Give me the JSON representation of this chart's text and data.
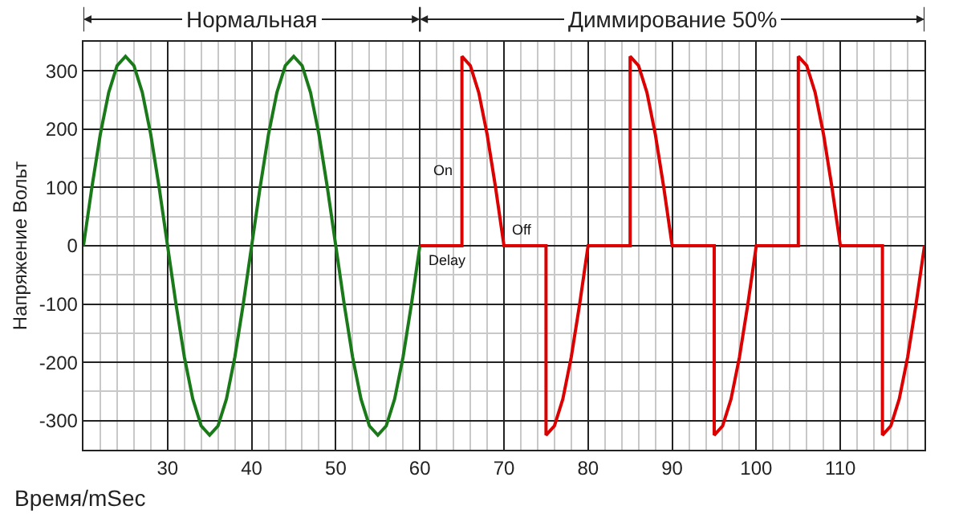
{
  "chart_data": {
    "type": "line",
    "xlabel": "Время/mSec",
    "ylabel": "Напряжение Вольт",
    "xlim": [
      20,
      120
    ],
    "xticks": [
      30,
      40,
      50,
      60,
      70,
      80,
      90,
      100,
      110
    ],
    "ylim": [
      -350,
      350
    ],
    "yticks": [
      -300,
      -200,
      -100,
      0,
      100,
      200,
      300
    ],
    "grid": true,
    "marker": "none",
    "line_style": "solid",
    "series": [
      {
        "color": "#1a7a1a",
        "x": [
          20,
          21,
          22,
          23,
          24,
          25,
          26,
          27,
          28,
          29,
          30,
          31,
          32,
          33,
          34,
          35,
          36,
          37,
          38,
          39,
          40,
          41,
          42,
          43,
          44,
          45,
          46,
          47,
          48,
          49,
          50,
          51,
          52,
          53,
          54,
          55,
          56,
          57,
          58,
          59,
          60
        ],
        "values": [
          0,
          100,
          191,
          263,
          309,
          325,
          309,
          263,
          191,
          100,
          0,
          -100,
          -191,
          -263,
          -309,
          -325,
          -309,
          -263,
          -191,
          -100,
          0,
          100,
          191,
          263,
          309,
          325,
          309,
          263,
          191,
          100,
          0,
          -100,
          -191,
          -263,
          -309,
          -325,
          -309,
          -263,
          -191,
          -100,
          0
        ]
      },
      {
        "color": "#dd0000",
        "x": [
          60,
          65,
          65,
          66,
          67,
          68,
          69,
          70,
          75,
          75,
          76,
          77,
          78,
          79,
          80,
          85,
          85,
          86,
          87,
          88,
          89,
          90,
          95,
          95,
          96,
          97,
          98,
          99,
          100,
          105,
          105,
          106,
          107,
          108,
          109,
          110,
          115,
          115,
          116,
          117,
          118,
          119,
          120
        ],
        "values": [
          0,
          0,
          325,
          309,
          263,
          191,
          100,
          0,
          0,
          -325,
          -309,
          -263,
          -191,
          -100,
          0,
          0,
          325,
          309,
          263,
          191,
          100,
          0,
          0,
          -325,
          -309,
          -263,
          -191,
          -100,
          0,
          0,
          325,
          309,
          263,
          191,
          100,
          0,
          0,
          -325,
          -309,
          -263,
          -191,
          -100,
          0
        ]
      }
    ],
    "annotations": [
      "Нормальная",
      "Диммирование 50%",
      "On",
      "Off",
      "Delay"
    ]
  }
}
